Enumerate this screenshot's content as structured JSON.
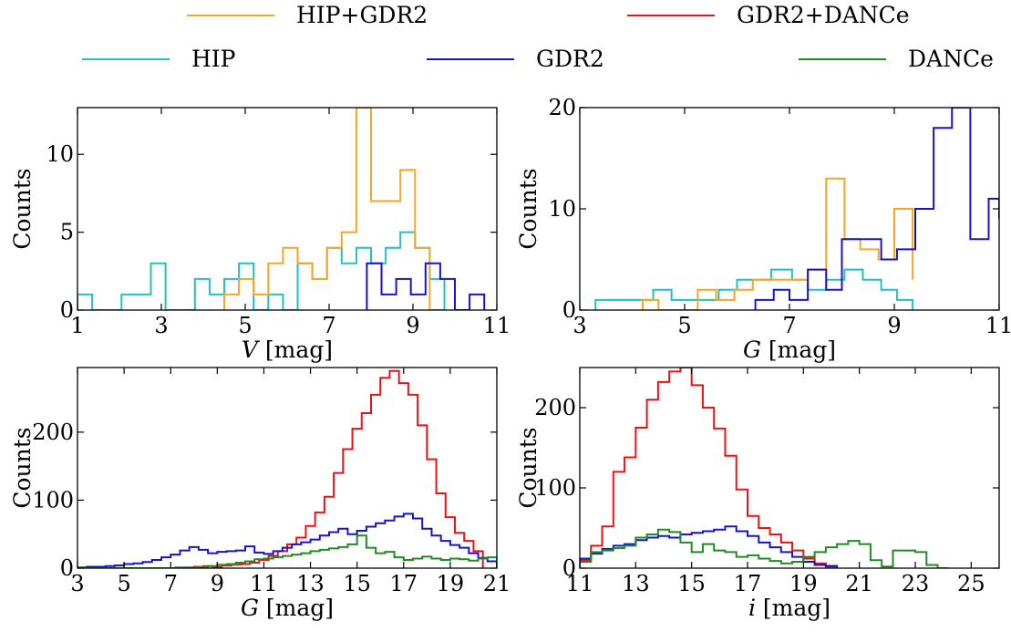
{
  "legend": [
    {
      "name": "HIP+GDR2",
      "color": "#f5a623"
    },
    {
      "name": "GDR2+DANCe",
      "color": "#ee1111"
    },
    {
      "name": "HIP",
      "color": "#22c0c0"
    },
    {
      "name": "GDR2",
      "color": "#1515cc"
    },
    {
      "name": "DANCe",
      "color": "#228b22"
    }
  ],
  "chart_data": [
    {
      "type": "histogram",
      "xlabel_symbol": "V",
      "xlabel_unit": " [mag]",
      "ylabel": "Counts",
      "xlim": [
        1,
        11
      ],
      "ylim": [
        0,
        13
      ],
      "xticks": [
        1,
        3,
        5,
        7,
        9,
        11
      ],
      "yticks": [
        0,
        5,
        10
      ],
      "series": [
        {
          "name": "HIP",
          "color": "#22c0c0",
          "edges": [
            1.0,
            1.35,
            2.05,
            2.75,
            3.1,
            3.8,
            4.15,
            4.5,
            4.85,
            5.2,
            5.55,
            5.9,
            6.25,
            6.6,
            6.95,
            7.3,
            7.65,
            8.0,
            8.35,
            8.7,
            9.05,
            9.4,
            9.75
          ],
          "counts": [
            1,
            0,
            1,
            3,
            0,
            2,
            1,
            2,
            3,
            0,
            1,
            0,
            3,
            2,
            4,
            3,
            4,
            3,
            4,
            5,
            4,
            2
          ]
        },
        {
          "name": "HIP+GDR2",
          "color": "#f5a623",
          "edges": [
            4.5,
            4.85,
            5.2,
            5.55,
            5.9,
            6.25,
            6.6,
            6.95,
            7.3,
            7.65,
            8.0,
            8.35,
            8.7,
            9.05,
            9.4,
            9.75
          ],
          "counts": [
            1,
            2,
            1,
            3,
            4,
            3,
            2,
            4,
            5,
            13,
            7,
            7,
            9,
            4,
            0
          ]
        },
        {
          "name": "GDR2",
          "color": "#1515cc",
          "edges": [
            7.9,
            8.25,
            8.6,
            8.95,
            9.3,
            9.65,
            10.0,
            10.35,
            10.7
          ],
          "counts": [
            3,
            1,
            2,
            1,
            3,
            2,
            0,
            1
          ]
        }
      ]
    },
    {
      "type": "histogram",
      "xlabel_symbol": "G",
      "xlabel_unit": " [mag]",
      "ylabel": "Counts",
      "xlim": [
        3,
        11
      ],
      "ylim": [
        0,
        20
      ],
      "xticks": [
        3,
        5,
        7,
        9,
        11
      ],
      "yticks": [
        0,
        10,
        20
      ],
      "series": [
        {
          "name": "HIP",
          "color": "#22c0c0",
          "edges": [
            3.3,
            4.4,
            4.75,
            5.3,
            5.65,
            6.0,
            6.35,
            6.65,
            7.05,
            7.35,
            7.7,
            8.05,
            8.4,
            8.75,
            9.05,
            9.35
          ],
          "counts": [
            1,
            2,
            1,
            1,
            2,
            3,
            3,
            4,
            3,
            2,
            3,
            4,
            3,
            2,
            1
          ]
        },
        {
          "name": "HIP+GDR2",
          "color": "#f5a623",
          "edges": [
            4.2,
            4.5,
            5.25,
            5.6,
            5.95,
            6.3,
            6.65,
            7.0,
            7.35,
            7.7,
            8.05,
            8.35,
            8.7,
            9.0,
            9.35
          ],
          "counts": [
            1,
            0,
            2,
            1,
            2,
            3,
            3,
            3,
            4,
            13,
            7,
            6,
            5,
            10,
            3
          ]
        },
        {
          "name": "GDR2",
          "color": "#1515cc",
          "edges": [
            6.35,
            6.7,
            7.0,
            7.35,
            7.7,
            8.0,
            8.4,
            8.75,
            9.05,
            9.4,
            9.75,
            10.1,
            10.45,
            10.8,
            11.0
          ],
          "counts": [
            1,
            2,
            1,
            4,
            2,
            7,
            7,
            5,
            6,
            10,
            18,
            20,
            7,
            11,
            9
          ]
        }
      ]
    },
    {
      "type": "histogram",
      "xlabel_symbol": "G",
      "xlabel_unit": " [mag]",
      "ylabel": "Counts",
      "xlim": [
        3,
        21
      ],
      "ylim": [
        0,
        295
      ],
      "xticks": [
        3,
        5,
        7,
        9,
        11,
        13,
        15,
        17,
        19,
        21
      ],
      "yticks": [
        0,
        100,
        200
      ],
      "series": [
        {
          "name": "GDR2+DANCe",
          "color": "#ee1111",
          "edges": [
            7.2,
            7.6,
            8.0,
            8.4,
            8.8,
            9.2,
            9.6,
            10.0,
            10.4,
            10.8,
            11.2,
            11.6,
            12.0,
            12.4,
            12.8,
            13.2,
            13.6,
            14.0,
            14.4,
            14.8,
            15.2,
            15.6,
            16.0,
            16.4,
            16.8,
            17.2,
            17.6,
            18.0,
            18.4,
            18.8,
            19.2,
            19.6,
            20.0,
            20.4
          ],
          "counts": [
            1,
            1,
            2,
            3,
            2,
            4,
            5,
            6,
            8,
            12,
            18,
            25,
            35,
            45,
            62,
            82,
            105,
            140,
            175,
            205,
            228,
            255,
            280,
            290,
            272,
            255,
            210,
            160,
            110,
            75,
            52,
            40,
            25
          ]
        },
        {
          "name": "GDR2",
          "color": "#1515cc",
          "edges": [
            3.0,
            3.4,
            3.8,
            4.2,
            4.6,
            5.0,
            5.4,
            5.8,
            6.2,
            6.6,
            7.0,
            7.4,
            7.8,
            8.2,
            8.6,
            9.0,
            9.4,
            9.8,
            10.2,
            10.6,
            11.0,
            11.4,
            11.8,
            12.2,
            12.6,
            13.0,
            13.4,
            13.8,
            14.2,
            14.6,
            15.0,
            15.4,
            15.8,
            16.2,
            16.6,
            17.0,
            17.4,
            17.8,
            18.2,
            18.6,
            19.0,
            19.4,
            19.8,
            20.2,
            20.6,
            21.0
          ],
          "counts": [
            1,
            2,
            2,
            3,
            4,
            6,
            7,
            9,
            12,
            16,
            20,
            26,
            31,
            27,
            22,
            24,
            25,
            26,
            32,
            23,
            21,
            25,
            30,
            35,
            38,
            42,
            48,
            53,
            58,
            50,
            55,
            61,
            66,
            70,
            76,
            80,
            73,
            58,
            48,
            40,
            34,
            30,
            22,
            15,
            10
          ]
        },
        {
          "name": "DANCe",
          "color": "#228b22",
          "edges": [
            3.0,
            3.4,
            3.8,
            4.2,
            4.6,
            5.0,
            5.4,
            5.8,
            6.2,
            6.6,
            7.0,
            7.4,
            7.8,
            8.2,
            8.6,
            9.0,
            9.4,
            9.8,
            10.2,
            10.6,
            11.0,
            11.4,
            11.8,
            12.2,
            12.6,
            13.0,
            13.4,
            13.8,
            14.2,
            14.6,
            15.0,
            15.4,
            15.8,
            16.2,
            16.6,
            17.0,
            17.4,
            17.8,
            18.2,
            18.6,
            19.0,
            19.4,
            19.8,
            20.2,
            20.6,
            21.0
          ],
          "counts": [
            0,
            0,
            0,
            0,
            0,
            0,
            0,
            0,
            0,
            0,
            0,
            0,
            1,
            2,
            3,
            5,
            6,
            8,
            10,
            13,
            14,
            16,
            18,
            20,
            22,
            25,
            27,
            29,
            31,
            35,
            48,
            30,
            22,
            24,
            16,
            12,
            14,
            17,
            14,
            12,
            14,
            13,
            11,
            14,
            16
          ]
        }
      ]
    },
    {
      "type": "histogram",
      "xlabel_symbol": "i",
      "xlabel_unit": " [mag]",
      "ylabel": "Counts",
      "xlim": [
        11,
        26
      ],
      "ylim": [
        0,
        250
      ],
      "xticks": [
        11,
        13,
        15,
        17,
        19,
        21,
        23,
        25
      ],
      "yticks": [
        0,
        100,
        200
      ],
      "series": [
        {
          "name": "GDR2+DANCe",
          "color": "#ee1111",
          "edges": [
            11.0,
            11.4,
            11.8,
            12.2,
            12.6,
            13.0,
            13.4,
            13.8,
            14.2,
            14.6,
            15.0,
            15.4,
            15.8,
            16.2,
            16.6,
            17.0,
            17.4,
            17.8,
            18.2,
            18.6,
            19.0,
            19.4,
            19.8,
            20.2
          ],
          "counts": [
            10,
            28,
            52,
            120,
            138,
            175,
            210,
            232,
            245,
            250,
            228,
            200,
            174,
            140,
            98,
            65,
            50,
            42,
            32,
            22,
            12,
            6,
            3
          ]
        },
        {
          "name": "GDR2",
          "color": "#1515cc",
          "edges": [
            11.0,
            11.4,
            11.8,
            12.2,
            12.6,
            13.0,
            13.4,
            13.8,
            14.2,
            14.6,
            15.0,
            15.4,
            15.8,
            16.2,
            16.6,
            17.0,
            17.4,
            17.8,
            18.2,
            18.6,
            19.0,
            19.4,
            19.8,
            20.2
          ],
          "counts": [
            12,
            18,
            24,
            28,
            30,
            35,
            38,
            40,
            38,
            42,
            44,
            46,
            48,
            52,
            46,
            40,
            32,
            26,
            20,
            14,
            8,
            4,
            2
          ]
        },
        {
          "name": "DANCe",
          "color": "#228b22",
          "edges": [
            11.0,
            11.4,
            11.8,
            12.2,
            12.6,
            13.0,
            13.4,
            13.8,
            14.2,
            14.6,
            15.0,
            15.4,
            15.8,
            16.2,
            16.6,
            17.0,
            17.4,
            17.8,
            18.2,
            18.6,
            19.0,
            19.4,
            19.8,
            20.2,
            20.6,
            21.0,
            21.4,
            21.8,
            22.2,
            22.6,
            23.0,
            23.4,
            23.8,
            24.2
          ],
          "counts": [
            8,
            20,
            22,
            25,
            28,
            38,
            42,
            48,
            45,
            32,
            20,
            30,
            22,
            20,
            14,
            16,
            12,
            9,
            6,
            8,
            14,
            20,
            26,
            30,
            34,
            30,
            10,
            2,
            22,
            22,
            20,
            4,
            0
          ]
        }
      ]
    }
  ]
}
